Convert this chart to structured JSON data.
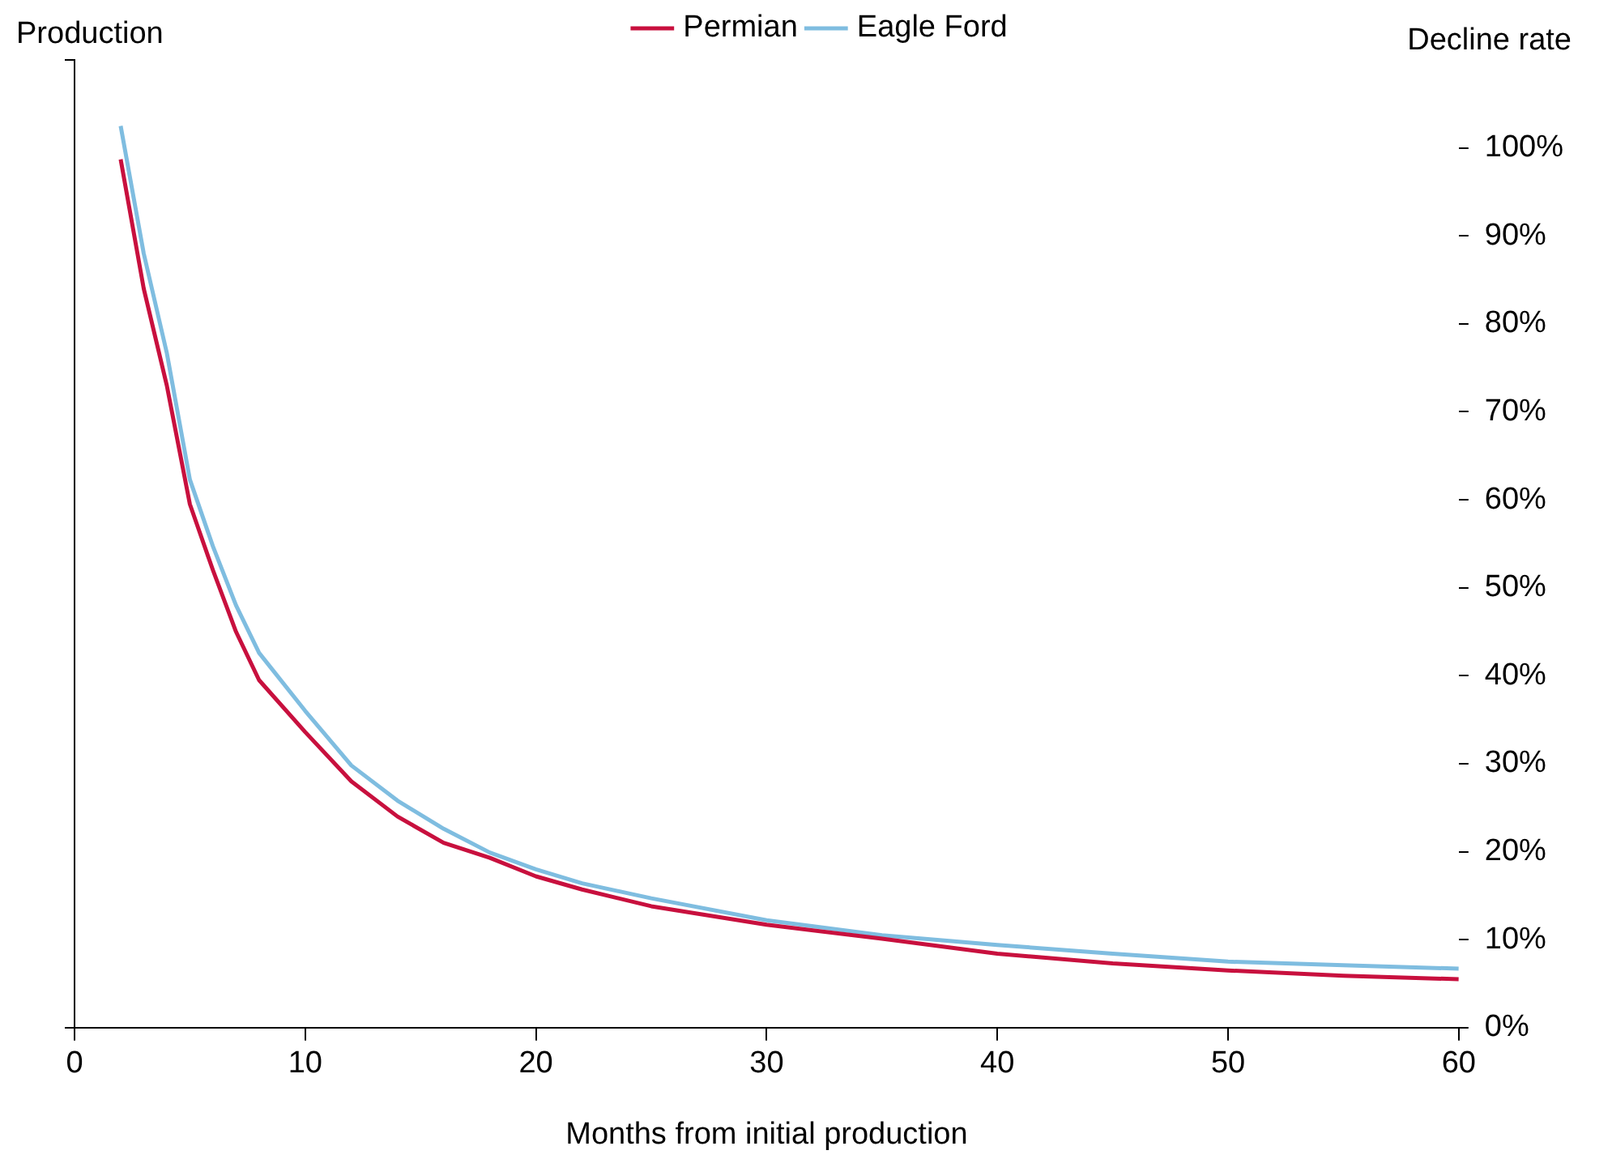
{
  "chart_data": {
    "type": "line",
    "xlabel": "Months from initial production",
    "ylabel": "Production",
    "y2label": "Decline rate",
    "x": [
      2,
      3,
      4,
      5,
      6,
      7,
      8,
      10,
      12,
      14,
      16,
      18,
      20,
      22,
      25,
      30,
      35,
      40,
      45,
      50,
      55,
      60
    ],
    "series": [
      {
        "name": "Permian",
        "color": "#c8103e",
        "axis": "y2",
        "values": [
          98.7,
          84,
          73,
          59.5,
          52,
          45,
          39.5,
          33.6,
          28,
          24,
          21,
          19.3,
          17.2,
          15.7,
          13.8,
          11.7,
          10.1,
          8.4,
          7.3,
          6.5,
          5.9,
          5.5
        ]
      },
      {
        "name": "Eagle Ford",
        "color": "#7fbde0",
        "axis": "y2",
        "values": [
          102.5,
          88,
          76.7,
          62.3,
          54.7,
          48,
          42.6,
          36,
          29.8,
          25.8,
          22.6,
          19.9,
          18,
          16.4,
          14.7,
          12.2,
          10.5,
          9.4,
          8.4,
          7.5,
          7.1,
          6.7
        ]
      }
    ],
    "xlim": [
      0,
      60
    ],
    "xticks": [
      0,
      10,
      20,
      30,
      40,
      50,
      60
    ],
    "y2lim": [
      0,
      110
    ],
    "y2ticks": [
      {
        "value": 0,
        "label": "0%"
      },
      {
        "value": 10,
        "label": "10%"
      },
      {
        "value": 20,
        "label": "20%"
      },
      {
        "value": 30,
        "label": "30%"
      },
      {
        "value": 40,
        "label": "40%"
      },
      {
        "value": 50,
        "label": "50%"
      },
      {
        "value": 60,
        "label": "60%"
      },
      {
        "value": 70,
        "label": "70%"
      },
      {
        "value": 80,
        "label": "80%"
      },
      {
        "value": 90,
        "label": "90%"
      },
      {
        "value": 100,
        "label": "100%"
      }
    ],
    "grid": false,
    "legend": "top",
    "marker": "none",
    "line_style": "solid"
  }
}
